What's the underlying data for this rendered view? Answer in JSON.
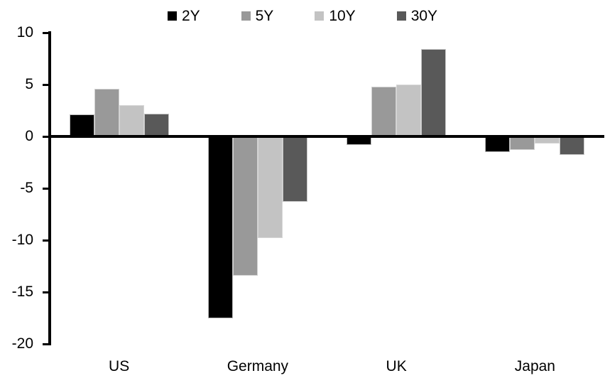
{
  "chart_data": {
    "type": "bar",
    "categories": [
      "US",
      "Germany",
      "UK",
      "Japan"
    ],
    "series": [
      {
        "name": "2Y",
        "color": "#000000",
        "values": [
          2.1,
          -17.5,
          -0.8,
          -1.5
        ]
      },
      {
        "name": "5Y",
        "color": "#999999",
        "values": [
          4.6,
          -13.4,
          4.8,
          -1.3
        ]
      },
      {
        "name": "10Y",
        "color": "#c3c3c3",
        "values": [
          3.0,
          -9.8,
          5.0,
          -0.7
        ]
      },
      {
        "name": "30Y",
        "color": "#595959",
        "values": [
          2.2,
          -6.3,
          8.4,
          -1.8
        ]
      }
    ],
    "title": "",
    "xlabel": "",
    "ylabel": "",
    "ylim": [
      -20,
      10
    ],
    "yticks": [
      10,
      5,
      0,
      -5,
      -10,
      -15,
      -20
    ],
    "grid": false,
    "legend_position": "top"
  },
  "axis": {
    "y_tick_labels": [
      "10",
      "5",
      "0",
      "-5",
      "-10",
      "-15",
      "-20"
    ]
  }
}
